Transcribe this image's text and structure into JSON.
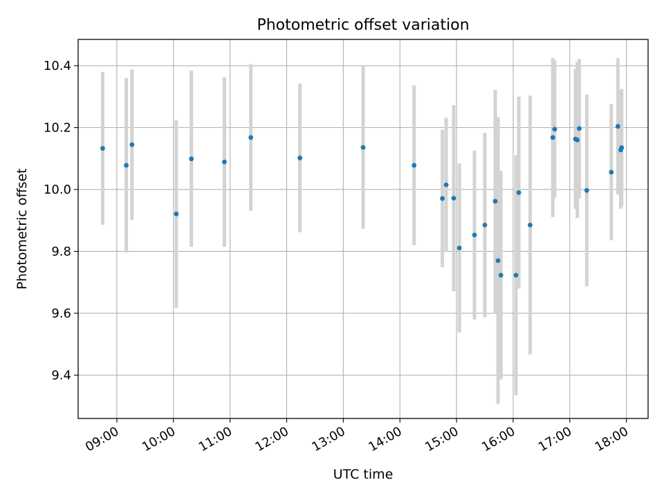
{
  "chart_data": {
    "type": "scatter",
    "title": "Photometric offset variation",
    "xlabel": "UTC time",
    "ylabel": "Photometric offset",
    "xlim": [
      "08:19",
      "18:23"
    ],
    "ylim": [
      9.26,
      10.485
    ],
    "grid": true,
    "x_ticks": [
      "09:00",
      "10:00",
      "11:00",
      "12:00",
      "13:00",
      "14:00",
      "15:00",
      "16:00",
      "17:00",
      "18:00"
    ],
    "y_ticks": [
      "9.4",
      "9.6",
      "9.8",
      "10.0",
      "10.2",
      "10.4"
    ],
    "colors": {
      "points": "#1f77b4",
      "error_bars": "#d3d3d3",
      "grid": "#b0b0b0"
    },
    "series": [
      {
        "points": [
          {
            "t": "08:45",
            "y": 10.133,
            "err": 0.247
          },
          {
            "t": "09:10",
            "y": 10.078,
            "err": 0.282
          },
          {
            "t": "09:16",
            "y": 10.145,
            "err": 0.243
          },
          {
            "t": "10:03",
            "y": 9.921,
            "err": 0.303
          },
          {
            "t": "10:19",
            "y": 10.099,
            "err": 0.285
          },
          {
            "t": "10:54",
            "y": 10.089,
            "err": 0.274
          },
          {
            "t": "11:22",
            "y": 10.168,
            "err": 0.237
          },
          {
            "t": "12:14",
            "y": 10.102,
            "err": 0.24
          },
          {
            "t": "13:21",
            "y": 10.136,
            "err": 0.263
          },
          {
            "t": "14:15",
            "y": 10.078,
            "err": 0.258
          },
          {
            "t": "14:45",
            "y": 9.971,
            "err": 0.222
          },
          {
            "t": "14:49",
            "y": 10.015,
            "err": 0.217
          },
          {
            "t": "14:57",
            "y": 9.972,
            "err": 0.301
          },
          {
            "t": "15:03",
            "y": 9.811,
            "err": 0.273
          },
          {
            "t": "15:19",
            "y": 9.853,
            "err": 0.273
          },
          {
            "t": "15:30",
            "y": 9.885,
            "err": 0.298
          },
          {
            "t": "15:41",
            "y": 9.962,
            "err": 0.36
          },
          {
            "t": "15:44",
            "y": 9.77,
            "err": 0.464
          },
          {
            "t": "15:47",
            "y": 9.723,
            "err": 0.337
          },
          {
            "t": "16:03",
            "y": 9.723,
            "err": 0.388
          },
          {
            "t": "16:06",
            "y": 9.99,
            "err": 0.31
          },
          {
            "t": "16:18",
            "y": 9.885,
            "err": 0.418
          },
          {
            "t": "16:42",
            "y": 10.168,
            "err": 0.257
          },
          {
            "t": "16:44",
            "y": 10.195,
            "err": 0.222
          },
          {
            "t": "17:06",
            "y": 10.163,
            "err": 0.226
          },
          {
            "t": "17:08",
            "y": 10.16,
            "err": 0.252
          },
          {
            "t": "17:10",
            "y": 10.197,
            "err": 0.225
          },
          {
            "t": "17:18",
            "y": 9.997,
            "err": 0.31
          },
          {
            "t": "17:44",
            "y": 10.056,
            "err": 0.22
          },
          {
            "t": "17:51",
            "y": 10.204,
            "err": 0.22
          },
          {
            "t": "17:54",
            "y": 10.128,
            "err": 0.19
          },
          {
            "t": "17:55",
            "y": 10.135,
            "err": 0.19
          }
        ]
      }
    ]
  }
}
